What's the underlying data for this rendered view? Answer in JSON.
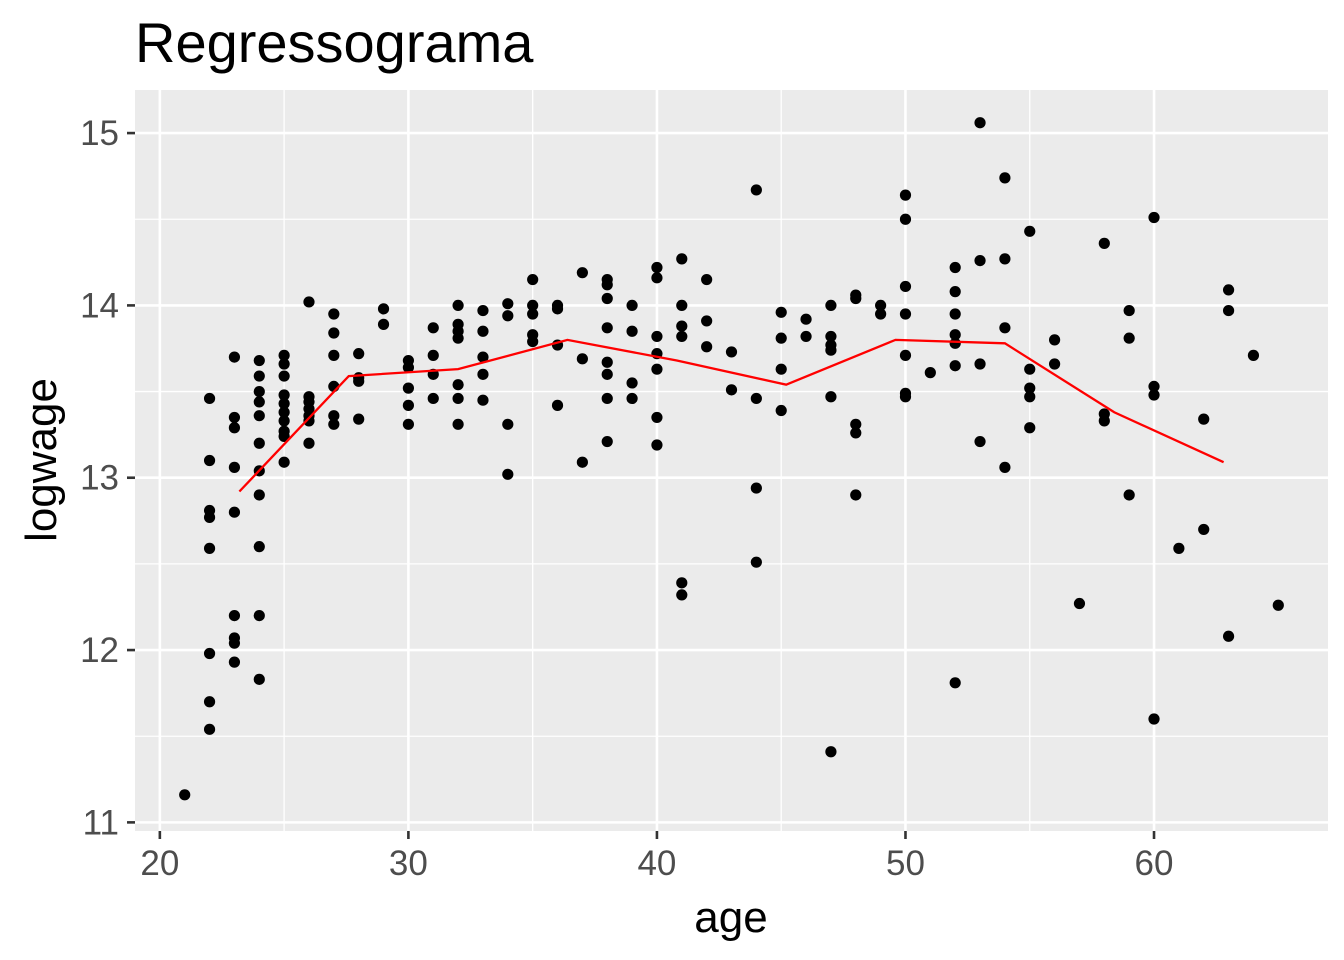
{
  "chart_data": {
    "type": "scatter",
    "title": "Regressograma",
    "xlabel": "age",
    "ylabel": "logwage",
    "xlim": [
      19,
      67
    ],
    "ylim": [
      10.95,
      15.25
    ],
    "x_ticks": [
      20,
      30,
      40,
      50,
      60
    ],
    "y_ticks": [
      11,
      12,
      13,
      14,
      15
    ],
    "x_tick_labels": [
      "20",
      "30",
      "40",
      "50",
      "60"
    ],
    "y_tick_labels": [
      "11",
      "12",
      "13",
      "14",
      "15"
    ],
    "grid": true,
    "colors": {
      "panel": "#ebebeb",
      "points": "#000000",
      "line": "#ff0000",
      "grid": "#ffffff"
    },
    "series": [
      {
        "type": "scatter",
        "points": [
          [
            21,
            11.16
          ],
          [
            22,
            13.46
          ],
          [
            22,
            13.1
          ],
          [
            22,
            12.81
          ],
          [
            22,
            12.77
          ],
          [
            22,
            12.59
          ],
          [
            22,
            11.98
          ],
          [
            22,
            11.7
          ],
          [
            22,
            11.54
          ],
          [
            23,
            13.7
          ],
          [
            23,
            13.35
          ],
          [
            23,
            13.29
          ],
          [
            23,
            13.06
          ],
          [
            23,
            12.8
          ],
          [
            23,
            12.2
          ],
          [
            23,
            12.07
          ],
          [
            23,
            12.04
          ],
          [
            23,
            11.93
          ],
          [
            24,
            13.68
          ],
          [
            24,
            13.59
          ],
          [
            24,
            13.5
          ],
          [
            24,
            13.44
          ],
          [
            24,
            13.36
          ],
          [
            24,
            13.2
          ],
          [
            24,
            13.04
          ],
          [
            24,
            12.9
          ],
          [
            24,
            12.6
          ],
          [
            24,
            12.2
          ],
          [
            24,
            11.83
          ],
          [
            25,
            13.71
          ],
          [
            25,
            13.66
          ],
          [
            25,
            13.59
          ],
          [
            25,
            13.48
          ],
          [
            25,
            13.43
          ],
          [
            25,
            13.38
          ],
          [
            25,
            13.33
          ],
          [
            25,
            13.27
          ],
          [
            25,
            13.24
          ],
          [
            25,
            13.09
          ],
          [
            26,
            14.02
          ],
          [
            26,
            13.47
          ],
          [
            26,
            13.44
          ],
          [
            26,
            13.4
          ],
          [
            26,
            13.36
          ],
          [
            26,
            13.33
          ],
          [
            26,
            13.2
          ],
          [
            27,
            13.95
          ],
          [
            27,
            13.84
          ],
          [
            27,
            13.71
          ],
          [
            27,
            13.53
          ],
          [
            27,
            13.36
          ],
          [
            27,
            13.31
          ],
          [
            28,
            13.72
          ],
          [
            28,
            13.58
          ],
          [
            28,
            13.56
          ],
          [
            28,
            13.34
          ],
          [
            29,
            13.98
          ],
          [
            29,
            13.89
          ],
          [
            30,
            13.68
          ],
          [
            30,
            13.64
          ],
          [
            30,
            13.52
          ],
          [
            30,
            13.42
          ],
          [
            30,
            13.31
          ],
          [
            31,
            13.87
          ],
          [
            31,
            13.71
          ],
          [
            31,
            13.6
          ],
          [
            31,
            13.46
          ],
          [
            32,
            14.0
          ],
          [
            32,
            13.89
          ],
          [
            32,
            13.85
          ],
          [
            32,
            13.81
          ],
          [
            32,
            13.54
          ],
          [
            32,
            13.46
          ],
          [
            32,
            13.31
          ],
          [
            33,
            13.97
          ],
          [
            33,
            13.85
          ],
          [
            33,
            13.7
          ],
          [
            33,
            13.6
          ],
          [
            33,
            13.45
          ],
          [
            34,
            14.01
          ],
          [
            34,
            13.94
          ],
          [
            34,
            13.31
          ],
          [
            34,
            13.02
          ],
          [
            35,
            14.15
          ],
          [
            35,
            14.0
          ],
          [
            35,
            13.95
          ],
          [
            35,
            13.83
          ],
          [
            35,
            13.79
          ],
          [
            36,
            14.0
          ],
          [
            36,
            13.98
          ],
          [
            36,
            13.77
          ],
          [
            36,
            13.42
          ],
          [
            37,
            14.19
          ],
          [
            37,
            13.69
          ],
          [
            37,
            13.09
          ],
          [
            38,
            14.15
          ],
          [
            38,
            14.12
          ],
          [
            38,
            14.04
          ],
          [
            38,
            13.87
          ],
          [
            38,
            13.67
          ],
          [
            38,
            13.6
          ],
          [
            38,
            13.46
          ],
          [
            38,
            13.21
          ],
          [
            39,
            14.0
          ],
          [
            39,
            13.85
          ],
          [
            39,
            13.55
          ],
          [
            39,
            13.46
          ],
          [
            40,
            14.22
          ],
          [
            40,
            14.16
          ],
          [
            40,
            13.82
          ],
          [
            40,
            13.72
          ],
          [
            40,
            13.63
          ],
          [
            40,
            13.35
          ],
          [
            40,
            13.19
          ],
          [
            41,
            14.27
          ],
          [
            41,
            14.0
          ],
          [
            41,
            13.88
          ],
          [
            41,
            13.82
          ],
          [
            41,
            12.39
          ],
          [
            41,
            12.32
          ],
          [
            42,
            14.15
          ],
          [
            42,
            13.91
          ],
          [
            42,
            13.76
          ],
          [
            43,
            13.73
          ],
          [
            43,
            13.51
          ],
          [
            44,
            14.67
          ],
          [
            44,
            13.46
          ],
          [
            44,
            12.94
          ],
          [
            44,
            12.51
          ],
          [
            45,
            13.96
          ],
          [
            45,
            13.81
          ],
          [
            45,
            13.63
          ],
          [
            45,
            13.39
          ],
          [
            46,
            13.92
          ],
          [
            46,
            13.82
          ],
          [
            47,
            14.0
          ],
          [
            47,
            13.82
          ],
          [
            47,
            13.77
          ],
          [
            47,
            13.74
          ],
          [
            47,
            13.47
          ],
          [
            47,
            11.41
          ],
          [
            48,
            14.06
          ],
          [
            48,
            14.04
          ],
          [
            48,
            13.31
          ],
          [
            48,
            13.26
          ],
          [
            48,
            12.9
          ],
          [
            49,
            14.0
          ],
          [
            49,
            13.95
          ],
          [
            50,
            14.64
          ],
          [
            50,
            14.5
          ],
          [
            50,
            14.11
          ],
          [
            50,
            13.95
          ],
          [
            50,
            13.71
          ],
          [
            50,
            13.49
          ],
          [
            50,
            13.47
          ],
          [
            51,
            13.61
          ],
          [
            52,
            14.22
          ],
          [
            52,
            14.08
          ],
          [
            52,
            13.95
          ],
          [
            52,
            13.83
          ],
          [
            52,
            13.78
          ],
          [
            52,
            13.65
          ],
          [
            52,
            11.81
          ],
          [
            53,
            15.06
          ],
          [
            53,
            14.26
          ],
          [
            53,
            13.66
          ],
          [
            53,
            13.21
          ],
          [
            54,
            14.74
          ],
          [
            54,
            14.27
          ],
          [
            54,
            13.87
          ],
          [
            54,
            13.06
          ],
          [
            55,
            14.43
          ],
          [
            55,
            13.63
          ],
          [
            55,
            13.52
          ],
          [
            55,
            13.47
          ],
          [
            55,
            13.29
          ],
          [
            56,
            13.8
          ],
          [
            56,
            13.66
          ],
          [
            57,
            12.27
          ],
          [
            58,
            14.36
          ],
          [
            58,
            13.37
          ],
          [
            58,
            13.33
          ],
          [
            59,
            13.97
          ],
          [
            59,
            13.81
          ],
          [
            59,
            12.9
          ],
          [
            60,
            14.51
          ],
          [
            60,
            13.53
          ],
          [
            60,
            13.48
          ],
          [
            60,
            11.6
          ],
          [
            61,
            12.59
          ],
          [
            62,
            13.34
          ],
          [
            62,
            12.7
          ],
          [
            63,
            14.09
          ],
          [
            63,
            13.97
          ],
          [
            63,
            12.08
          ],
          [
            64,
            13.71
          ],
          [
            65,
            12.26
          ]
        ]
      },
      {
        "type": "line",
        "x": [
          23.2,
          27.6,
          32,
          36.4,
          40.8,
          45.2,
          49.6,
          54,
          58.4,
          62.8
        ],
        "y": [
          12.92,
          13.59,
          13.63,
          13.8,
          13.68,
          13.54,
          13.8,
          13.78,
          13.38,
          13.09
        ]
      }
    ]
  }
}
